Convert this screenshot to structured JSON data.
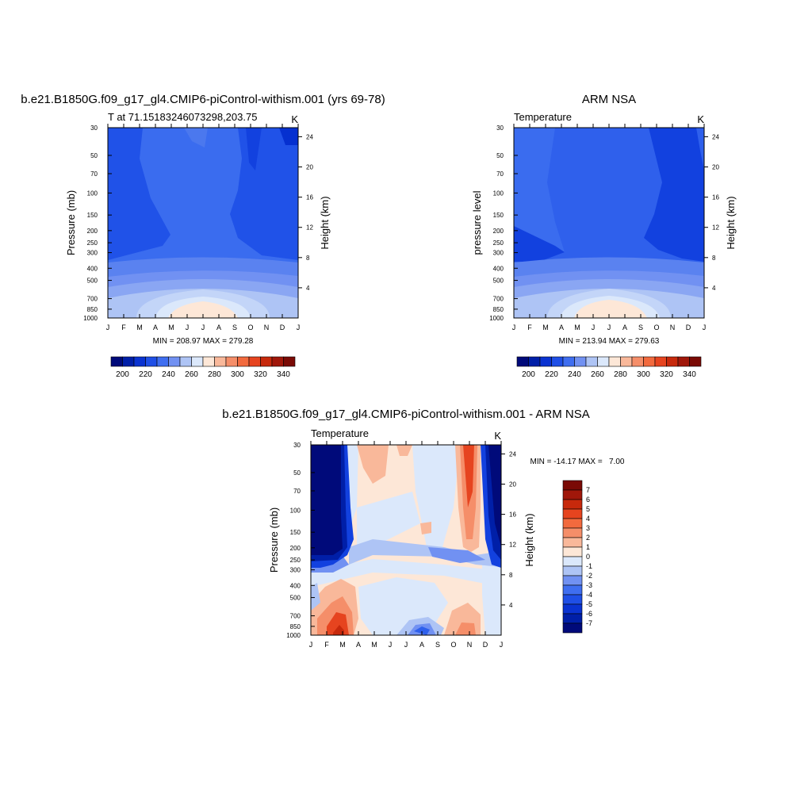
{
  "figure": {
    "panel_a_title": "b.e21.B1850G.f09_g17_gl4.CMIP6-piControl-withism.001 (yrs 69-78)",
    "panel_b_title": "ARM NSA",
    "panel_c_title": "b.e21.B1850G.f09_g17_gl4.CMIP6-piControl-withism.001 - ARM NSA"
  },
  "chart_data": [
    {
      "id": "model",
      "type": "heatmap",
      "title": "b.e21.B1850G.f09_g17_gl4.CMIP6-piControl-withism.001 (yrs 69-78)",
      "subtitle_left": "T at 71.15183246073298,203.75",
      "subtitle_right": "K",
      "ylabel": "Pressure (mb)",
      "y2label": "Height (km)",
      "xticks": [
        "J",
        "F",
        "M",
        "A",
        "M",
        "J",
        "J",
        "A",
        "S",
        "O",
        "N",
        "D",
        "J"
      ],
      "yticks": [
        30,
        50,
        70,
        100,
        150,
        200,
        250,
        300,
        400,
        500,
        700,
        850,
        1000
      ],
      "y2ticks": [
        4,
        8,
        12,
        16,
        20,
        24
      ],
      "stats": "MIN = 208.97 MAX = 279.28",
      "colorbar": {
        "orientation": "horizontal",
        "labels": [
          "200",
          "220",
          "240",
          "260",
          "280",
          "300",
          "320",
          "340"
        ],
        "colors": [
          "#000a7a",
          "#001fa8",
          "#0a33d1",
          "#1f4fe6",
          "#3f6ef0",
          "#7191f2",
          "#aec4f5",
          "#dbe8fb",
          "#fde7d7",
          "#f9b89a",
          "#f58e69",
          "#f26a3e",
          "#e6441f",
          "#c7290c",
          "#a0170a",
          "#7a0a05"
        ]
      },
      "contour_levels": [
        195,
        200,
        205,
        210,
        215,
        220,
        225,
        230,
        235,
        240,
        245,
        250,
        255,
        260,
        265,
        270,
        275
      ],
      "level_colors": [
        "#000a7a",
        "#001fa8",
        "#0530d0",
        "#1241df",
        "#2052e8",
        "#2f60ec",
        "#3a6cef",
        "#5a82f0",
        "#7191f2",
        "#8aa6f3",
        "#9db5f4",
        "#aec4f5",
        "#c3d5f8",
        "#dbe8fb",
        "#eef4fd",
        "#fde7d7",
        "#fbd0b7"
      ]
    },
    {
      "id": "obs",
      "type": "heatmap",
      "title": "ARM NSA",
      "subtitle_left": "Temperature",
      "subtitle_right": "K",
      "ylabel": "pressure level",
      "y2label": "Height (km)",
      "xticks": [
        "J",
        "F",
        "M",
        "A",
        "M",
        "J",
        "J",
        "A",
        "S",
        "O",
        "N",
        "D",
        "J"
      ],
      "yticks": [
        30,
        50,
        70,
        100,
        150,
        200,
        250,
        300,
        400,
        500,
        700,
        850,
        1000
      ],
      "y2ticks": [
        4,
        8,
        12,
        16,
        20,
        24
      ],
      "stats": "MIN = 213.94 MAX = 279.63",
      "colorbar": {
        "orientation": "horizontal",
        "labels": [
          "200",
          "220",
          "240",
          "260",
          "280",
          "300",
          "320",
          "340"
        ],
        "colors": [
          "#000a7a",
          "#001fa8",
          "#0a33d1",
          "#1f4fe6",
          "#3f6ef0",
          "#7191f2",
          "#aec4f5",
          "#dbe8fb",
          "#fde7d7",
          "#f9b89a",
          "#f58e69",
          "#f26a3e",
          "#e6441f",
          "#c7290c",
          "#a0170a",
          "#7a0a05"
        ]
      }
    },
    {
      "id": "diff",
      "type": "heatmap",
      "title": "b.e21.B1850G.f09_g17_gl4.CMIP6-piControl-withism.001 - ARM NSA",
      "subtitle_left": "Temperature",
      "subtitle_right": "K",
      "ylabel": "Pressure (mb)",
      "y2label": "Height (km)",
      "xticks": [
        "J",
        "F",
        "M",
        "A",
        "M",
        "J",
        "J",
        "A",
        "S",
        "O",
        "N",
        "D",
        "J"
      ],
      "yticks": [
        30,
        50,
        70,
        100,
        150,
        200,
        250,
        300,
        400,
        500,
        700,
        850,
        1000
      ],
      "y2ticks": [
        4,
        8,
        12,
        16,
        20,
        24
      ],
      "stats": "MIN = -14.17 MAX =   7.00",
      "colorbar": {
        "orientation": "vertical",
        "labels": [
          "7",
          "6",
          "5",
          "4",
          "3",
          "2",
          "1",
          "0",
          "-1",
          "-2",
          "-3",
          "-4",
          "-5",
          "-6",
          "-7"
        ],
        "colors": [
          "#7a0a05",
          "#a0170a",
          "#c7290c",
          "#e6441f",
          "#f26a3e",
          "#f58e69",
          "#f9b89a",
          "#fde7d7",
          "#dbe8fb",
          "#aec4f5",
          "#7191f2",
          "#3f6ef0",
          "#1f4fe6",
          "#0a33d1",
          "#001fa8",
          "#000a7a"
        ]
      }
    }
  ]
}
